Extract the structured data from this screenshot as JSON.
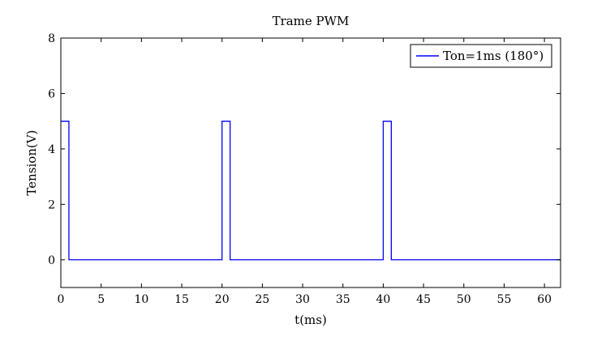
{
  "chart_data": {
    "type": "line",
    "title": "Trame PWM",
    "xlabel": "t(ms)",
    "ylabel": "Tension(V)",
    "xlim": [
      0,
      62
    ],
    "ylim": [
      -1,
      8
    ],
    "xticks": [
      0,
      5,
      10,
      15,
      20,
      25,
      30,
      35,
      40,
      45,
      50,
      55,
      60
    ],
    "yticks": [
      0,
      2,
      4,
      6,
      8
    ],
    "grid": false,
    "legend_position": "top-right",
    "series": [
      {
        "name": "Ton=1ms (180°)",
        "color": "#0000ff",
        "step": true,
        "x": [
          0,
          1,
          1,
          20,
          20,
          21,
          21,
          40,
          40,
          41,
          41,
          62
        ],
        "y": [
          5,
          5,
          0,
          0,
          5,
          5,
          0,
          0,
          5,
          5,
          0,
          0
        ]
      }
    ]
  }
}
